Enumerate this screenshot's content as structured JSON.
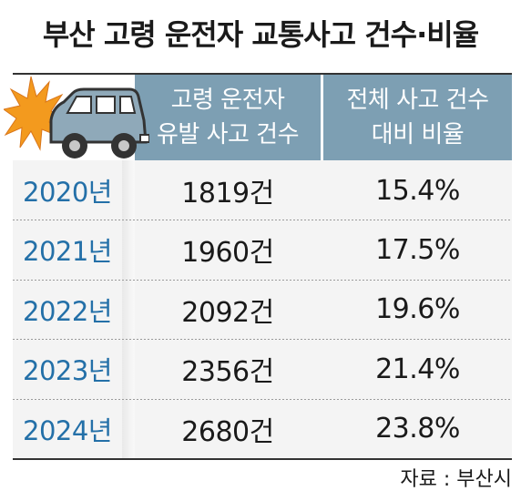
{
  "title": "부산 고령 운전자 교통사고 건수·비율",
  "columns": [
    "고령 운전자\n유발 사고 건수",
    "전체 사고 건수\n대비 비율"
  ],
  "rows": [
    {
      "year": "2020년",
      "count": "1819건",
      "rate": "15.4%"
    },
    {
      "year": "2021년",
      "count": "1960건",
      "rate": "17.5%"
    },
    {
      "year": "2022년",
      "count": "2092건",
      "rate": "19.6%"
    },
    {
      "year": "2023년",
      "count": "2356건",
      "rate": "21.4%"
    },
    {
      "year": "2024년",
      "count": "2680건",
      "rate": "23.8%"
    }
  ],
  "source": "자료 : 부산시",
  "illustration": "car-crash-icon",
  "colors": {
    "header": "#7d9fb3",
    "year_text": "#2470a8",
    "crash_burst": "#f39a1e",
    "car_body": "#8fa9b9"
  },
  "chart_data": {
    "type": "table",
    "title": "부산 고령 운전자 교통사고 건수·비율",
    "columns": [
      "고령 운전자 유발 사고 건수",
      "전체 사고 건수 대비 비율"
    ],
    "categories": [
      "2020년",
      "2021년",
      "2022년",
      "2023년",
      "2024년"
    ],
    "series": [
      {
        "name": "고령 운전자 유발 사고 건수",
        "values": [
          1819,
          1960,
          2092,
          2356,
          2680
        ]
      },
      {
        "name": "전체 사고 건수 대비 비율",
        "values": [
          15.4,
          17.5,
          19.6,
          21.4,
          23.8
        ]
      }
    ]
  }
}
